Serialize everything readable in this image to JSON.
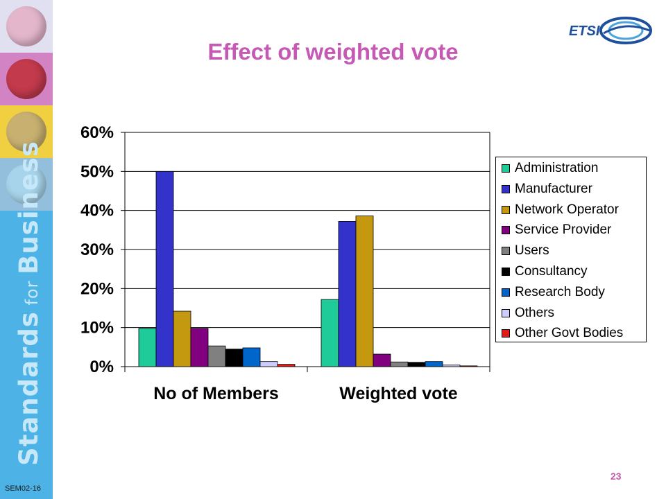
{
  "slide": {
    "title": "Effect of weighted vote",
    "page_number": "23",
    "footer_code": "SEM02-16",
    "sidebar_text_main_1": "Standards",
    "sidebar_text_small": " for ",
    "sidebar_text_main_2": "Business",
    "logo_text": "ETSI",
    "colors": {
      "title": "#c45ab3",
      "sidebar": "#4db3e6"
    },
    "sidebar_tiles": [
      {
        "name": "globe-tile-1",
        "bg": "#e0e0f0",
        "disc": "#e4b6cc"
      },
      {
        "name": "globe-tile-2",
        "bg": "#d283c4",
        "disc": "#c23a4c"
      },
      {
        "name": "globe-tile-3",
        "bg": "#f0d040",
        "disc": "#c8b070"
      },
      {
        "name": "globe-tile-4",
        "bg": "#93bedc",
        "disc": "#a7d4ea"
      }
    ]
  },
  "chart_data": {
    "type": "bar",
    "title": "",
    "xlabel": "",
    "ylabel": "",
    "categories": [
      "No of Members",
      "Weighted vote"
    ],
    "ylim": [
      0,
      60
    ],
    "y_ticks": [
      "0%",
      "10%",
      "20%",
      "30%",
      "40%",
      "50%",
      "60%"
    ],
    "grid": true,
    "legend_position": "right",
    "series": [
      {
        "name": "Administration",
        "color": "#1fcb99",
        "values": [
          9.8,
          17.2
        ]
      },
      {
        "name": "Manufacturer",
        "color": "#3333cc",
        "values": [
          50.0,
          37.2
        ]
      },
      {
        "name": "Network Operator",
        "color": "#c4980f",
        "values": [
          14.2,
          38.6
        ]
      },
      {
        "name": "Service Provider",
        "color": "#800080",
        "values": [
          9.8,
          3.2
        ]
      },
      {
        "name": "Users",
        "color": "#808080",
        "values": [
          5.3,
          1.2
        ]
      },
      {
        "name": "Consultancy",
        "color": "#000000",
        "values": [
          4.5,
          1.1
        ]
      },
      {
        "name": "Research Body",
        "color": "#0066cc",
        "values": [
          4.8,
          1.3
        ]
      },
      {
        "name": "Others",
        "color": "#ccccff",
        "values": [
          1.3,
          0.4
        ]
      },
      {
        "name": "Other Govt Bodies",
        "color": "#e31a1a",
        "values": [
          0.6,
          0.2
        ]
      }
    ]
  }
}
